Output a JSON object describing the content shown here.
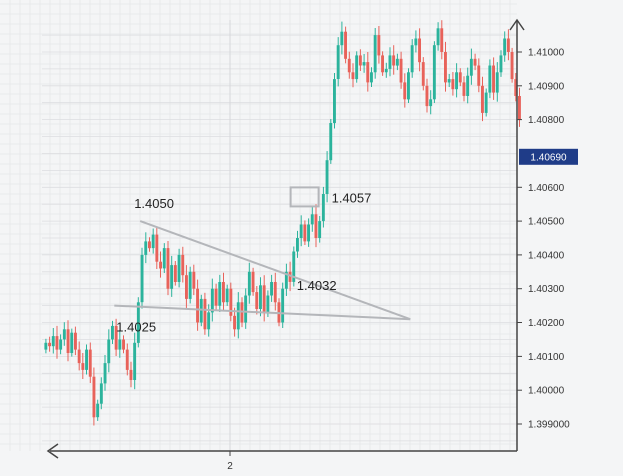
{
  "chart_data": {
    "type": "candlestick",
    "title": "",
    "xlabel": "",
    "ylabel": "",
    "ylim": [
      1.3987,
      1.4112
    ],
    "y_ticks": [
      "1.41000",
      "1.40900",
      "1.40800",
      "1.40600",
      "1.40500",
      "1.40400",
      "1.40300",
      "1.40200",
      "1.40100",
      "1.40000",
      "1.399000"
    ],
    "y_tick_values": [
      1.41,
      1.409,
      1.408,
      1.406,
      1.405,
      1.404,
      1.403,
      1.402,
      1.401,
      1.4,
      1.399
    ],
    "x_ticks": [
      "2"
    ],
    "current_price": "1.40690",
    "current_price_value": 1.4069,
    "grid": true,
    "colors": {
      "up": "#2bb39c",
      "down": "#e8625a",
      "pattern": "#b4b6ba",
      "tag": "#1f3c88",
      "axis": "#444444"
    },
    "pattern": {
      "name": "symmetrical triangle",
      "upper_start": {
        "i": 26,
        "price": 1.405
      },
      "lower_start": {
        "i": 19,
        "price": 1.4025
      },
      "apex": {
        "i": 99,
        "price": 1.4021
      }
    },
    "annotations": [
      {
        "text": "1.4050",
        "i": 26,
        "price": 1.405
      },
      {
        "text": "1.4025",
        "i": 19,
        "price": 1.4025
      },
      {
        "text": "1.4032",
        "i": 64,
        "price": 1.4032
      },
      {
        "text": "1.4057",
        "i": 68,
        "price": 1.4057
      }
    ],
    "closes": [
      1.4014,
      1.4013,
      1.4016,
      1.4012,
      1.4015,
      1.4018,
      1.4011,
      1.4017,
      1.4012,
      1.4008,
      1.4006,
      1.4012,
      1.4004,
      1.3992,
      1.3996,
      1.4002,
      1.4008,
      1.4015,
      1.4019,
      1.4012,
      1.4015,
      1.4012,
      1.4006,
      1.4003,
      1.4014,
      1.4026,
      1.404,
      1.4044,
      1.4042,
      1.4046,
      1.4038,
      1.4036,
      1.4042,
      1.403,
      1.4037,
      1.4032,
      1.404,
      1.4034,
      1.4027,
      1.4035,
      1.403,
      1.402,
      1.4027,
      1.4018,
      1.4023,
      1.403,
      1.4025,
      1.4032,
      1.4026,
      1.403,
      1.4022,
      1.4018,
      1.4026,
      1.402,
      1.4028,
      1.4035,
      1.4029,
      1.4024,
      1.4031,
      1.4023,
      1.4028,
      1.4032,
      1.4026,
      1.402,
      1.403,
      1.4035,
      1.4032,
      1.4041,
      1.4045,
      1.4049,
      1.4044,
      1.4049,
      1.4052,
      1.4045,
      1.405,
      1.4058,
      1.4068,
      1.4079,
      1.4092,
      1.4102,
      1.4106,
      1.4098,
      1.4094,
      1.4092,
      1.4099,
      1.4096,
      1.4097,
      1.4091,
      1.4094,
      1.4105,
      1.4099,
      1.4094,
      1.4095,
      1.4099,
      1.4096,
      1.4098,
      1.4091,
      1.4086,
      1.4094,
      1.4102,
      1.4104,
      1.4097,
      1.409,
      1.4084,
      1.4086,
      1.4102,
      1.4107,
      1.41,
      1.4091,
      1.4092,
      1.4089,
      1.4094,
      1.4091,
      1.4087,
      1.4093,
      1.4098,
      1.4096,
      1.409,
      1.4082,
      1.4088,
      1.4096,
      1.4088,
      1.4094,
      1.4099,
      1.4104,
      1.41,
      1.4092,
      1.4087,
      1.408
    ]
  }
}
